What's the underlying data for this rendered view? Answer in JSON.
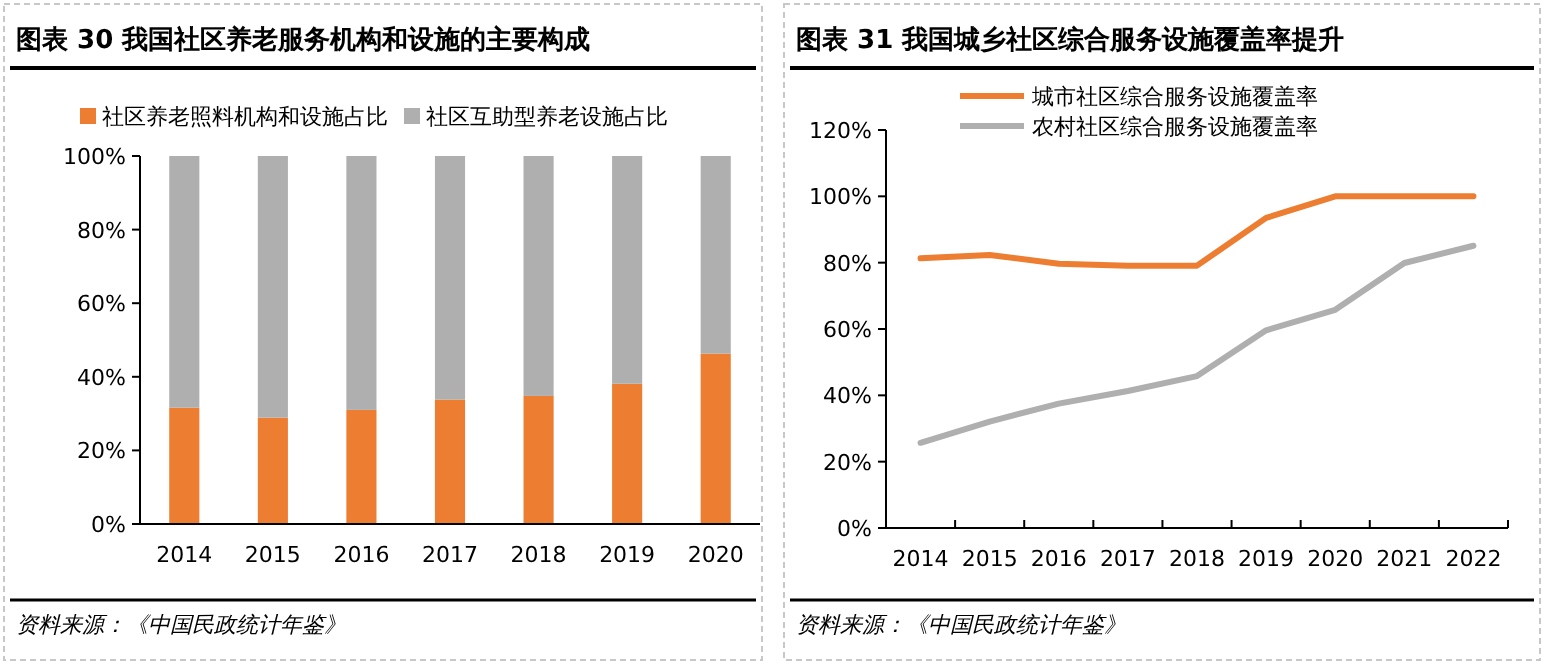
{
  "chart_data": [
    {
      "type": "bar",
      "title": "图表 30   我国社区养老服务机构和设施的主要构成",
      "stacked": true,
      "legend": "top",
      "categories": [
        "2014",
        "2015",
        "2016",
        "2017",
        "2018",
        "2019",
        "2020"
      ],
      "series": [
        {
          "name": "社区养老照料机构和设施占比",
          "color": "#ed7d31",
          "values": [
            31.6,
            28.9,
            31.0,
            33.8,
            34.8,
            38.1,
            46.3
          ]
        },
        {
          "name": "社区互助型养老设施占比",
          "color": "#afafaf",
          "values": [
            68.4,
            71.1,
            69.0,
            66.2,
            65.2,
            61.9,
            53.7
          ]
        }
      ],
      "ylim": [
        0,
        100
      ],
      "yticks": [
        {
          "value": 0,
          "label": "0%"
        },
        {
          "value": 20,
          "label": "20%"
        },
        {
          "value": 40,
          "label": "40%"
        },
        {
          "value": 60,
          "label": "60%"
        },
        {
          "value": 80,
          "label": "80%"
        },
        {
          "value": 100,
          "label": "100%"
        }
      ],
      "annotations": [
        "资料来源：《中国民政统计年鉴》"
      ]
    },
    {
      "type": "line",
      "title": "图表 31   我国城乡社区综合服务设施覆盖率提升",
      "legend": "top left",
      "categories": [
        "2014",
        "2015",
        "2016",
        "2017",
        "2018",
        "2019",
        "2020",
        "2021",
        "2022"
      ],
      "series": [
        {
          "name": "城市社区综合服务设施覆盖率",
          "color": "#ed7d31",
          "values": [
            81.3,
            82.3,
            79.7,
            79.1,
            79.1,
            93.5,
            100,
            100,
            100
          ]
        },
        {
          "name": "农村社区综合服务设施覆盖率",
          "color": "#afafaf",
          "values": [
            25.7,
            32.1,
            37.5,
            41.3,
            45.8,
            59.6,
            65.8,
            79.9,
            85.1
          ]
        }
      ],
      "ylim": [
        0,
        120
      ],
      "yticks": [
        {
          "value": 0,
          "label": "0%"
        },
        {
          "value": 20,
          "label": "20%"
        },
        {
          "value": 40,
          "label": "40%"
        },
        {
          "value": 60,
          "label": "60%"
        },
        {
          "value": 80,
          "label": "80%"
        },
        {
          "value": 100,
          "label": "100%"
        },
        {
          "value": 120,
          "label": "120%"
        }
      ],
      "annotations": [
        "资料来源：《中国民政统计年鉴》"
      ]
    }
  ]
}
